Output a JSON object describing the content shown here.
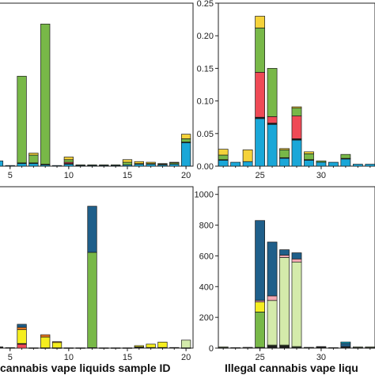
{
  "colors": {
    "teal": "#1aa7d8",
    "red": "#ef4a56",
    "green": "#78b848",
    "yellow": "#f5d23a",
    "bright_yellow": "#f5ee20",
    "orange": "#f07a1e",
    "navy": "#1f5f8a",
    "pink": "#f3a9b3",
    "light_green": "#d4ebab",
    "black": "#1b1b1b",
    "cyan": "#17b7d8"
  },
  "chart_data": [
    {
      "id": "top-left",
      "type": "bar",
      "stacked": true,
      "xlim": [
        3.6,
        20.6
      ],
      "ylim": [
        0,
        0.25
      ],
      "xticks": [
        5,
        10,
        15,
        20
      ],
      "yticks": [],
      "show_y_axis_labels": false,
      "xlabel": "",
      "categories": [
        4,
        5,
        6,
        7,
        8,
        9,
        10,
        11,
        12,
        13,
        14,
        15,
        16,
        17,
        18,
        19,
        20
      ],
      "series": [
        {
          "color_key": "teal",
          "values": [
            0.008,
            0.001,
            0.004,
            0.004,
            0.002,
            0.001,
            0.003,
            0.001,
            0.001,
            0.001,
            0.001,
            0.002,
            0.003,
            0.003,
            0.002,
            0.003,
            0.036
          ]
        },
        {
          "color_key": "black",
          "values": [
            0,
            0,
            0.001,
            0.001,
            0.001,
            0,
            0.001,
            0,
            0,
            0,
            0,
            0,
            0,
            0,
            0,
            0,
            0.001
          ]
        },
        {
          "color_key": "red",
          "values": [
            0,
            0,
            0,
            0,
            0,
            0,
            0.002,
            0,
            0,
            0,
            0,
            0,
            0,
            0,
            0,
            0,
            0
          ]
        },
        {
          "color_key": "green",
          "values": [
            0,
            0,
            0.133,
            0.012,
            0.215,
            0,
            0.004,
            0.001,
            0.001,
            0.001,
            0.001,
            0.004,
            0.001,
            0.001,
            0.001,
            0.002,
            0.005
          ]
        },
        {
          "color_key": "yellow",
          "values": [
            0,
            0,
            0,
            0.003,
            0,
            0,
            0.004,
            0,
            0,
            0,
            0,
            0.004,
            0.003,
            0.002,
            0.001,
            0.001,
            0.007
          ]
        }
      ]
    },
    {
      "id": "top-right",
      "type": "bar",
      "stacked": true,
      "xlim": [
        21.6,
        34.4
      ],
      "ylim": [
        0,
        0.25
      ],
      "xticks": [
        25,
        30
      ],
      "yticks": [
        0,
        0.05,
        0.1,
        0.15,
        0.2,
        0.25
      ],
      "ytick_labels": [
        "0.00",
        "0.05",
        "0.10",
        "0.15",
        "0.20",
        "0.25"
      ],
      "xlabel": "",
      "categories": [
        22,
        23,
        24,
        25,
        26,
        27,
        28,
        29,
        30,
        31,
        32,
        33,
        34
      ],
      "series": [
        {
          "color_key": "teal",
          "values": [
            0.009,
            0.006,
            0.007,
            0.073,
            0.064,
            0.012,
            0.04,
            0.009,
            0.006,
            0.006,
            0.011,
            0.003,
            0.003
          ]
        },
        {
          "color_key": "black",
          "values": [
            0.001,
            0,
            0,
            0.002,
            0.002,
            0.001,
            0.002,
            0.001,
            0,
            0,
            0.001,
            0,
            0
          ]
        },
        {
          "color_key": "red",
          "values": [
            0,
            0,
            0,
            0.069,
            0.01,
            0,
            0.035,
            0,
            0,
            0,
            0,
            0,
            0
          ]
        },
        {
          "color_key": "green",
          "values": [
            0.007,
            0,
            0,
            0.068,
            0.074,
            0.012,
            0.012,
            0.009,
            0.002,
            0,
            0.006,
            0,
            0
          ]
        },
        {
          "color_key": "yellow",
          "values": [
            0.009,
            0,
            0.018,
            0.018,
            0,
            0.002,
            0.002,
            0.003,
            0,
            0,
            0,
            0,
            0
          ]
        }
      ]
    },
    {
      "id": "bottom-left",
      "type": "bar",
      "stacked": true,
      "xlim": [
        3.6,
        20.6
      ],
      "ylim": [
        0,
        1050
      ],
      "xticks": [
        5,
        10,
        15,
        20
      ],
      "yticks": [],
      "show_y_axis_labels": false,
      "xlabel": "cannabis vape liquids sample ID",
      "categories": [
        4,
        5,
        6,
        7,
        8,
        9,
        10,
        11,
        12,
        13,
        14,
        15,
        16,
        17,
        18,
        19,
        20
      ],
      "series": [
        {
          "color_key": "red",
          "values": [
            0,
            0,
            25,
            0,
            0,
            0,
            0,
            0,
            0,
            0,
            0,
            0,
            0,
            0,
            0,
            0,
            0
          ]
        },
        {
          "color_key": "black",
          "values": [
            8,
            3,
            5,
            2,
            2,
            2,
            2,
            2,
            3,
            2,
            2,
            2,
            8,
            4,
            4,
            4,
            2
          ]
        },
        {
          "color_key": "bright_yellow",
          "values": [
            0,
            0,
            90,
            0,
            70,
            35,
            0,
            0,
            0,
            0,
            0,
            0,
            8,
            22,
            35,
            0,
            0
          ]
        },
        {
          "color_key": "orange",
          "values": [
            0,
            0,
            15,
            0,
            15,
            5,
            0,
            0,
            0,
            0,
            0,
            0,
            0,
            0,
            0,
            0,
            0
          ]
        },
        {
          "color_key": "green",
          "values": [
            0,
            0,
            0,
            0,
            0,
            0,
            0,
            0,
            620,
            0,
            0,
            0,
            0,
            0,
            0,
            0,
            0
          ]
        },
        {
          "color_key": "light_green",
          "values": [
            0,
            0,
            0,
            0,
            0,
            0,
            0,
            0,
            0,
            0,
            0,
            0,
            0,
            0,
            0,
            0,
            50
          ]
        },
        {
          "color_key": "navy",
          "values": [
            0,
            0,
            20,
            0,
            0,
            0,
            0,
            0,
            300,
            0,
            0,
            0,
            0,
            0,
            0,
            0,
            0
          ]
        }
      ]
    },
    {
      "id": "bottom-right",
      "type": "bar",
      "stacked": true,
      "xlim": [
        21.6,
        34.4
      ],
      "ylim": [
        0,
        1050
      ],
      "xticks": [
        25,
        30
      ],
      "yticks": [
        0,
        200,
        400,
        600,
        800,
        1000
      ],
      "ytick_labels": [
        "0",
        "200",
        "400",
        "600",
        "800",
        "1000"
      ],
      "xlabel": "Illegal cannabis vape liqu",
      "categories": [
        22,
        23,
        24,
        25,
        26,
        27,
        28,
        29,
        30,
        31,
        32,
        33,
        34
      ],
      "series": [
        {
          "color_key": "black",
          "values": [
            3,
            3,
            5,
            5,
            15,
            15,
            5,
            5,
            10,
            3,
            10,
            3,
            3
          ]
        },
        {
          "color_key": "green",
          "values": [
            0,
            0,
            0,
            230,
            5,
            5,
            5,
            0,
            0,
            0,
            0,
            0,
            0
          ]
        },
        {
          "color_key": "bright_yellow",
          "values": [
            0,
            0,
            0,
            65,
            0,
            0,
            0,
            0,
            0,
            0,
            0,
            0,
            0
          ]
        },
        {
          "color_key": "light_green",
          "values": [
            5,
            0,
            0,
            0,
            290,
            570,
            550,
            0,
            0,
            0,
            0,
            5,
            5
          ]
        },
        {
          "color_key": "pink",
          "values": [
            0,
            0,
            0,
            10,
            30,
            15,
            20,
            0,
            0,
            0,
            0,
            0,
            0
          ]
        },
        {
          "color_key": "navy",
          "values": [
            0,
            0,
            0,
            520,
            350,
            35,
            40,
            0,
            0,
            0,
            20,
            0,
            0
          ]
        },
        {
          "color_key": "cyan",
          "values": [
            0,
            0,
            0,
            0,
            0,
            0,
            0,
            0,
            0,
            0,
            10,
            0,
            0
          ]
        }
      ]
    }
  ]
}
